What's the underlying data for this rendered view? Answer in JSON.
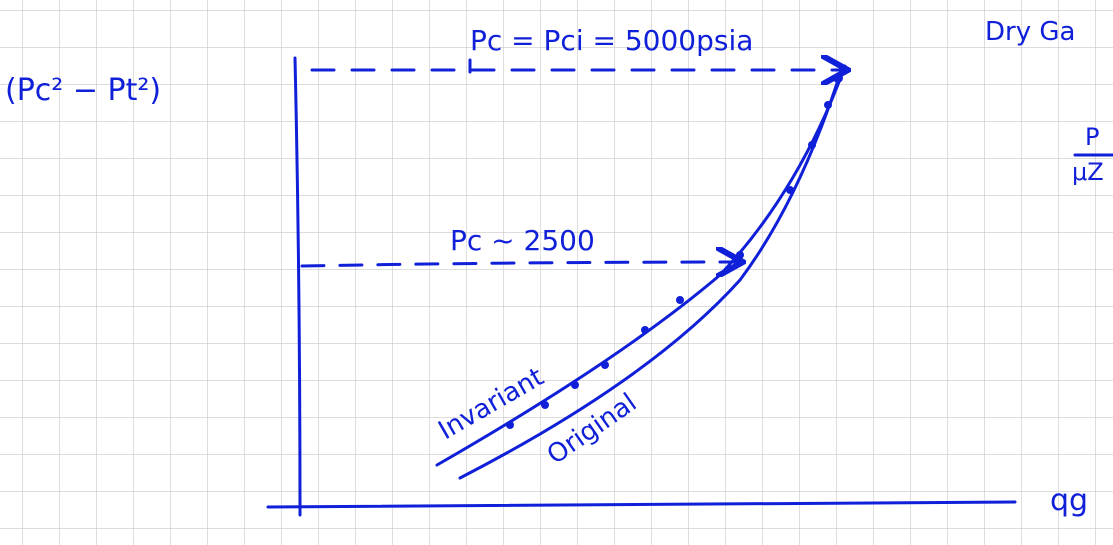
{
  "labels": {
    "top_note": "Pc = Pci = 5000psia",
    "mid_note": "Pc ~ 2500",
    "y_axis": "(Pc² − Pt²)",
    "x_axis": "qg",
    "corner_note": "Dry Ga",
    "ratio_top": "P",
    "ratio_bottom": "μZ",
    "curve_1": "Invariant",
    "curve_2": "Original"
  }
}
